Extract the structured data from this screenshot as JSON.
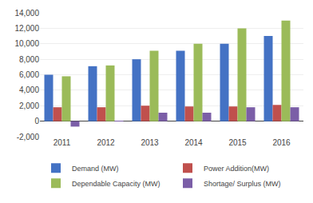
{
  "chart_data": {
    "type": "bar",
    "categories": [
      "2011",
      "2012",
      "2013",
      "2014",
      "2015",
      "2016"
    ],
    "series": [
      {
        "name": "Demand (MW)",
        "color": "#4472C4",
        "values": [
          6000,
          7100,
          8000,
          9100,
          10000,
          11000
        ]
      },
      {
        "name": "Power Addition(MW)",
        "color": "#C0504D",
        "values": [
          1800,
          1800,
          2000,
          1900,
          1900,
          2100
        ]
      },
      {
        "name": "Dependable Capacity (MW)",
        "color": "#9BBB59",
        "values": [
          5800,
          7200,
          9100,
          10000,
          12000,
          13000
        ]
      },
      {
        "name": "Shortage/ Surplus (MW)",
        "color": "#7B5EA7",
        "values": [
          -700,
          50,
          1100,
          1100,
          1800,
          1800
        ]
      }
    ],
    "ylim": [
      -2000,
      14000
    ],
    "yticks": [
      {
        "value": -2000,
        "label": "-2,000"
      },
      0,
      {
        "value": 2000,
        "label": "2,000"
      },
      {
        "value": 4000,
        "label": "4,000"
      },
      {
        "value": 6000,
        "label": "6,000"
      },
      {
        "value": 8000,
        "label": "8,000"
      },
      {
        "value": 10000,
        "label": "10,000"
      },
      {
        "value": 12000,
        "label": "12,000"
      },
      {
        "value": 14000,
        "label": "14,000"
      }
    ],
    "grid": true,
    "legend": "bottom"
  }
}
